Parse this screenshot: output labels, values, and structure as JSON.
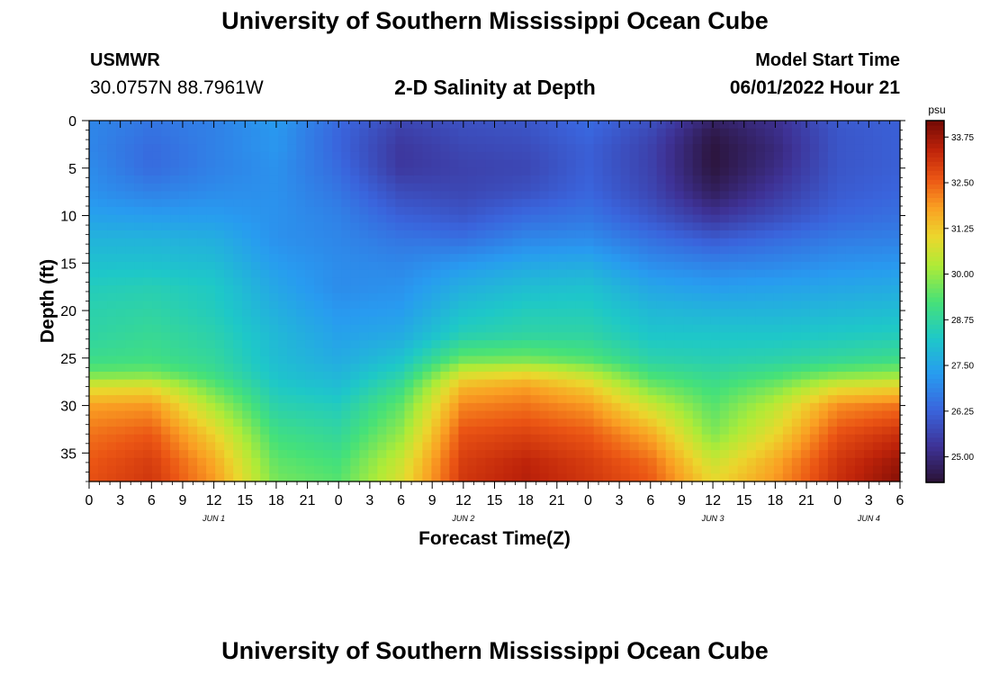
{
  "header": {
    "title": "University of Southern Mississippi Ocean Cube",
    "station_id": "USMWR",
    "station_coords": "30.0757N  88.7961W",
    "subtitle": "2-D Salinity at Depth",
    "start_label": "Model Start Time",
    "start_value": "06/01/2022 Hour 21"
  },
  "footer": {
    "title": "University of Southern Mississippi Ocean Cube"
  },
  "chart_data": {
    "type": "heatmap",
    "title": "2-D Salinity at Depth",
    "xlabel": "Forecast Time(Z)",
    "ylabel": "Depth (ft)",
    "x_hours_range": [
      0,
      78
    ],
    "x_tick_step_hours": 3,
    "x_tick_labels": [
      "0",
      "3",
      "6",
      "9",
      "12",
      "15",
      "18",
      "21",
      "0",
      "3",
      "6",
      "9",
      "12",
      "15",
      "18",
      "21",
      "0",
      "3",
      "6",
      "9",
      "12",
      "15",
      "18",
      "21",
      "0",
      "3",
      "6"
    ],
    "day_labels": [
      {
        "label": "JUN 1",
        "hour": 12
      },
      {
        "label": "JUN 2",
        "hour": 36
      },
      {
        "label": "JUN 3",
        "hour": 60
      },
      {
        "label": "JUN 4",
        "hour": 75
      }
    ],
    "ylim": [
      0,
      38
    ],
    "y_ticks": [
      0,
      5,
      10,
      15,
      20,
      25,
      30,
      35
    ],
    "colorbar": {
      "unit": "psu",
      "range": [
        24.3,
        34.2
      ],
      "tick_values": [
        25.0,
        26.25,
        27.5,
        28.75,
        30.0,
        31.25,
        32.5,
        33.75
      ],
      "tick_labels": [
        "25.00",
        "26.25",
        "27.50",
        "28.75",
        "30.00",
        "31.25",
        "32.50",
        "33.75"
      ]
    },
    "depth_levels_ft": [
      0,
      1.5,
      3,
      5,
      7.5,
      10,
      12.5,
      15,
      17.5,
      20,
      22.5,
      25,
      26.5,
      28,
      30,
      33,
      36,
      38
    ],
    "time_hours": [
      0,
      6,
      12,
      18,
      24,
      30,
      36,
      42,
      48,
      54,
      60,
      66,
      72,
      78
    ],
    "salinity_psu": [
      [
        26.9,
        26.6,
        26.8,
        27.3,
        26.4,
        25.7,
        25.9,
        26.0,
        26.4,
        25.9,
        24.8,
        25.2,
        26.1,
        26.2
      ],
      [
        26.9,
        26.5,
        26.8,
        27.2,
        26.3,
        25.5,
        25.8,
        25.9,
        26.3,
        25.7,
        24.5,
        25.1,
        26.0,
        26.2
      ],
      [
        26.9,
        26.4,
        26.8,
        27.2,
        26.3,
        25.4,
        25.7,
        25.8,
        26.2,
        25.6,
        24.4,
        25.0,
        26.0,
        26.2
      ],
      [
        27.0,
        26.4,
        26.8,
        27.1,
        26.4,
        25.4,
        25.6,
        25.7,
        26.2,
        25.6,
        24.4,
        25.1,
        26.0,
        26.2
      ],
      [
        27.1,
        26.8,
        27.0,
        27.1,
        26.6,
        25.8,
        25.7,
        25.9,
        26.3,
        25.7,
        24.7,
        25.4,
        26.1,
        26.3
      ],
      [
        27.4,
        27.3,
        27.3,
        27.1,
        26.8,
        26.2,
        26.0,
        26.4,
        26.6,
        26.0,
        25.3,
        25.8,
        26.3,
        26.5
      ],
      [
        27.8,
        27.8,
        27.7,
        27.1,
        26.9,
        26.6,
        26.5,
        26.9,
        27.0,
        26.5,
        26.1,
        26.4,
        26.7,
        26.8
      ],
      [
        28.1,
        28.1,
        28.0,
        27.3,
        27.0,
        26.9,
        27.2,
        27.5,
        27.6,
        27.0,
        26.8,
        26.9,
        27.1,
        27.2
      ],
      [
        28.4,
        28.5,
        28.3,
        27.5,
        27.0,
        27.1,
        27.7,
        28.0,
        28.1,
        27.5,
        27.3,
        27.4,
        27.5,
        27.6
      ],
      [
        28.6,
        28.7,
        28.4,
        27.7,
        27.2,
        27.3,
        28.1,
        28.4,
        28.4,
        27.9,
        27.8,
        27.8,
        27.9,
        28.0
      ],
      [
        28.7,
        28.9,
        28.6,
        27.9,
        27.4,
        27.6,
        28.5,
        28.7,
        28.7,
        28.2,
        28.2,
        28.2,
        28.3,
        28.4
      ],
      [
        29.0,
        29.1,
        28.8,
        28.0,
        27.6,
        28.1,
        29.5,
        29.6,
        29.3,
        28.6,
        28.5,
        28.6,
        28.8,
        29.0
      ],
      [
        29.5,
        29.6,
        29.0,
        28.1,
        27.8,
        28.5,
        30.6,
        30.9,
        30.3,
        29.1,
        28.8,
        29.1,
        29.6,
        29.8
      ],
      [
        30.8,
        30.9,
        29.5,
        28.3,
        28.0,
        29.0,
        31.5,
        31.8,
        31.2,
        29.7,
        29.1,
        29.7,
        30.8,
        31.0
      ],
      [
        31.8,
        31.9,
        30.2,
        28.6,
        28.4,
        29.5,
        32.1,
        32.3,
        31.9,
        30.6,
        29.4,
        30.4,
        32.0,
        32.3
      ],
      [
        32.3,
        32.6,
        31.1,
        29.1,
        28.8,
        30.0,
        32.7,
        32.9,
        32.6,
        31.7,
        29.8,
        31.0,
        32.7,
        33.2
      ],
      [
        32.6,
        33.0,
        31.7,
        29.5,
        29.2,
        30.6,
        33.0,
        33.4,
        33.0,
        32.4,
        30.6,
        31.7,
        33.1,
        33.8
      ],
      [
        32.7,
        33.1,
        31.9,
        29.7,
        29.4,
        30.8,
        33.1,
        33.5,
        33.1,
        32.6,
        31.0,
        31.9,
        33.2,
        34.0
      ]
    ]
  }
}
